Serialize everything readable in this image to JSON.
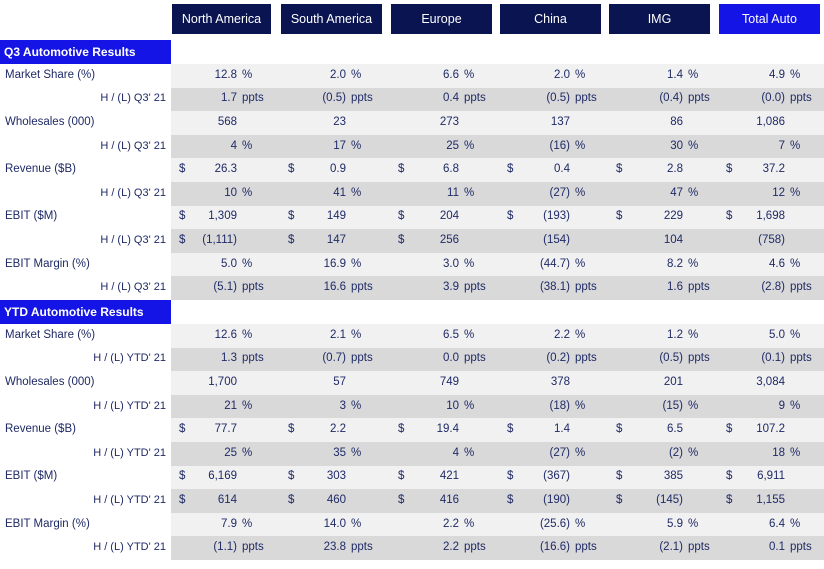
{
  "columns": [
    "North America",
    "South America",
    "Europe",
    "China",
    "IMG",
    "Total Auto"
  ],
  "sections": [
    {
      "title": "Q3 Automotive Results",
      "metrics": [
        {
          "label": "Market Share (%)",
          "sub_label": "H / (L) Q3' 21",
          "main": [
            {
              "cur": "",
              "val": "12.8",
              "unit": "%"
            },
            {
              "cur": "",
              "val": "2.0",
              "unit": "%"
            },
            {
              "cur": "",
              "val": "6.6",
              "unit": "%"
            },
            {
              "cur": "",
              "val": "2.0",
              "unit": "%"
            },
            {
              "cur": "",
              "val": "1.4",
              "unit": "%"
            },
            {
              "cur": "",
              "val": "4.9",
              "unit": "%"
            }
          ],
          "sub": [
            {
              "cur": "",
              "val": "1.7",
              "unit": "ppts"
            },
            {
              "cur": "",
              "val": "(0.5)",
              "unit": "ppts"
            },
            {
              "cur": "",
              "val": "0.4",
              "unit": "ppts"
            },
            {
              "cur": "",
              "val": "(0.5)",
              "unit": "ppts"
            },
            {
              "cur": "",
              "val": "(0.4)",
              "unit": "ppts"
            },
            {
              "cur": "",
              "val": "(0.0)",
              "unit": "ppts"
            }
          ]
        },
        {
          "label": "Wholesales (000)",
          "sub_label": "H / (L) Q3' 21",
          "main": [
            {
              "cur": "",
              "val": "568",
              "unit": ""
            },
            {
              "cur": "",
              "val": "23",
              "unit": ""
            },
            {
              "cur": "",
              "val": "273",
              "unit": ""
            },
            {
              "cur": "",
              "val": "137",
              "unit": ""
            },
            {
              "cur": "",
              "val": "86",
              "unit": ""
            },
            {
              "cur": "",
              "val": "1,086",
              "unit": ""
            }
          ],
          "sub": [
            {
              "cur": "",
              "val": "4",
              "unit": "%"
            },
            {
              "cur": "",
              "val": "17",
              "unit": "%"
            },
            {
              "cur": "",
              "val": "25",
              "unit": "%"
            },
            {
              "cur": "",
              "val": "(16)",
              "unit": "%"
            },
            {
              "cur": "",
              "val": "30",
              "unit": "%"
            },
            {
              "cur": "",
              "val": "7",
              "unit": "%"
            }
          ]
        },
        {
          "label": "Revenue ($B)",
          "sub_label": "H / (L) Q3' 21",
          "main": [
            {
              "cur": "$",
              "val": "26.3",
              "unit": ""
            },
            {
              "cur": "$",
              "val": "0.9",
              "unit": ""
            },
            {
              "cur": "$",
              "val": "6.8",
              "unit": ""
            },
            {
              "cur": "$",
              "val": "0.4",
              "unit": ""
            },
            {
              "cur": "$",
              "val": "2.8",
              "unit": ""
            },
            {
              "cur": "$",
              "val": "37.2",
              "unit": ""
            }
          ],
          "sub": [
            {
              "cur": "",
              "val": "10",
              "unit": "%"
            },
            {
              "cur": "",
              "val": "41",
              "unit": "%"
            },
            {
              "cur": "",
              "val": "11",
              "unit": "%"
            },
            {
              "cur": "",
              "val": "(27)",
              "unit": "%"
            },
            {
              "cur": "",
              "val": "47",
              "unit": "%"
            },
            {
              "cur": "",
              "val": "12",
              "unit": "%"
            }
          ]
        },
        {
          "label": "EBIT ($M)",
          "sub_label": "H / (L) Q3' 21",
          "main": [
            {
              "cur": "$",
              "val": "1,309",
              "unit": ""
            },
            {
              "cur": "$",
              "val": "149",
              "unit": ""
            },
            {
              "cur": "$",
              "val": "204",
              "unit": ""
            },
            {
              "cur": "$",
              "val": "(193)",
              "unit": ""
            },
            {
              "cur": "$",
              "val": "229",
              "unit": ""
            },
            {
              "cur": "$",
              "val": "1,698",
              "unit": ""
            }
          ],
          "sub": [
            {
              "cur": "$",
              "val": "(1,111)",
              "unit": ""
            },
            {
              "cur": "$",
              "val": "147",
              "unit": ""
            },
            {
              "cur": "$",
              "val": "256",
              "unit": ""
            },
            {
              "cur": "",
              "val": "(154)",
              "unit": ""
            },
            {
              "cur": "",
              "val": "104",
              "unit": ""
            },
            {
              "cur": "",
              "val": "(758)",
              "unit": ""
            }
          ]
        },
        {
          "label": "EBIT Margin (%)",
          "sub_label": "H / (L) Q3' 21",
          "main": [
            {
              "cur": "",
              "val": "5.0",
              "unit": "%"
            },
            {
              "cur": "",
              "val": "16.9",
              "unit": "%"
            },
            {
              "cur": "",
              "val": "3.0",
              "unit": "%"
            },
            {
              "cur": "",
              "val": "(44.7)",
              "unit": "%"
            },
            {
              "cur": "",
              "val": "8.2",
              "unit": "%"
            },
            {
              "cur": "",
              "val": "4.6",
              "unit": "%"
            }
          ],
          "sub": [
            {
              "cur": "",
              "val": "(5.1)",
              "unit": "ppts"
            },
            {
              "cur": "",
              "val": "16.6",
              "unit": "ppts"
            },
            {
              "cur": "",
              "val": "3.9",
              "unit": "ppts"
            },
            {
              "cur": "",
              "val": "(38.1)",
              "unit": "ppts"
            },
            {
              "cur": "",
              "val": "1.6",
              "unit": "ppts"
            },
            {
              "cur": "",
              "val": "(2.8)",
              "unit": "ppts"
            }
          ]
        }
      ]
    },
    {
      "title": "YTD Automotive Results",
      "metrics": [
        {
          "label": "Market Share (%)",
          "sub_label": "H / (L) YTD' 21",
          "main": [
            {
              "cur": "",
              "val": "12.6",
              "unit": "%"
            },
            {
              "cur": "",
              "val": "2.1",
              "unit": "%"
            },
            {
              "cur": "",
              "val": "6.5",
              "unit": "%"
            },
            {
              "cur": "",
              "val": "2.2",
              "unit": "%"
            },
            {
              "cur": "",
              "val": "1.2",
              "unit": "%"
            },
            {
              "cur": "",
              "val": "5.0",
              "unit": "%"
            }
          ],
          "sub": [
            {
              "cur": "",
              "val": "1.3",
              "unit": "ppts"
            },
            {
              "cur": "",
              "val": "(0.7)",
              "unit": "ppts"
            },
            {
              "cur": "",
              "val": "0.0",
              "unit": "ppts"
            },
            {
              "cur": "",
              "val": "(0.2)",
              "unit": "ppts"
            },
            {
              "cur": "",
              "val": "(0.5)",
              "unit": "ppts"
            },
            {
              "cur": "",
              "val": "(0.1)",
              "unit": "ppts"
            }
          ]
        },
        {
          "label": "Wholesales (000)",
          "sub_label": "H / (L) YTD' 21",
          "main": [
            {
              "cur": "",
              "val": "1,700",
              "unit": ""
            },
            {
              "cur": "",
              "val": "57",
              "unit": ""
            },
            {
              "cur": "",
              "val": "749",
              "unit": ""
            },
            {
              "cur": "",
              "val": "378",
              "unit": ""
            },
            {
              "cur": "",
              "val": "201",
              "unit": ""
            },
            {
              "cur": "",
              "val": "3,084",
              "unit": ""
            }
          ],
          "sub": [
            {
              "cur": "",
              "val": "21",
              "unit": "%"
            },
            {
              "cur": "",
              "val": "3",
              "unit": "%"
            },
            {
              "cur": "",
              "val": "10",
              "unit": "%"
            },
            {
              "cur": "",
              "val": "(18)",
              "unit": "%"
            },
            {
              "cur": "",
              "val": "(15)",
              "unit": "%"
            },
            {
              "cur": "",
              "val": "9",
              "unit": "%"
            }
          ]
        },
        {
          "label": "Revenue ($B)",
          "sub_label": "H / (L) YTD' 21",
          "main": [
            {
              "cur": "$",
              "val": "77.7",
              "unit": ""
            },
            {
              "cur": "$",
              "val": "2.2",
              "unit": ""
            },
            {
              "cur": "$",
              "val": "19.4",
              "unit": ""
            },
            {
              "cur": "$",
              "val": "1.4",
              "unit": ""
            },
            {
              "cur": "$",
              "val": "6.5",
              "unit": ""
            },
            {
              "cur": "$",
              "val": "107.2",
              "unit": ""
            }
          ],
          "sub": [
            {
              "cur": "",
              "val": "25",
              "unit": "%"
            },
            {
              "cur": "",
              "val": "35",
              "unit": "%"
            },
            {
              "cur": "",
              "val": "4",
              "unit": "%"
            },
            {
              "cur": "",
              "val": "(27)",
              "unit": "%"
            },
            {
              "cur": "",
              "val": "(2)",
              "unit": "%"
            },
            {
              "cur": "",
              "val": "18",
              "unit": "%"
            }
          ]
        },
        {
          "label": "EBIT ($M)",
          "sub_label": "H / (L) YTD' 21",
          "main": [
            {
              "cur": "$",
              "val": "6,169",
              "unit": ""
            },
            {
              "cur": "$",
              "val": "303",
              "unit": ""
            },
            {
              "cur": "$",
              "val": "421",
              "unit": ""
            },
            {
              "cur": "$",
              "val": "(367)",
              "unit": ""
            },
            {
              "cur": "$",
              "val": "385",
              "unit": ""
            },
            {
              "cur": "$",
              "val": "6,911",
              "unit": ""
            }
          ],
          "sub": [
            {
              "cur": "$",
              "val": "614",
              "unit": ""
            },
            {
              "cur": "$",
              "val": "460",
              "unit": ""
            },
            {
              "cur": "$",
              "val": "416",
              "unit": ""
            },
            {
              "cur": "$",
              "val": "(190)",
              "unit": ""
            },
            {
              "cur": "$",
              "val": "(145)",
              "unit": ""
            },
            {
              "cur": "$",
              "val": "1,155",
              "unit": ""
            }
          ]
        },
        {
          "label": "EBIT Margin (%)",
          "sub_label": "H / (L) YTD' 21",
          "main": [
            {
              "cur": "",
              "val": "7.9",
              "unit": "%"
            },
            {
              "cur": "",
              "val": "14.0",
              "unit": "%"
            },
            {
              "cur": "",
              "val": "2.2",
              "unit": "%"
            },
            {
              "cur": "",
              "val": "(25.6)",
              "unit": "%"
            },
            {
              "cur": "",
              "val": "5.9",
              "unit": "%"
            },
            {
              "cur": "",
              "val": "6.4",
              "unit": "%"
            }
          ],
          "sub": [
            {
              "cur": "",
              "val": "(1.1)",
              "unit": "ppts"
            },
            {
              "cur": "",
              "val": "23.8",
              "unit": "ppts"
            },
            {
              "cur": "",
              "val": "2.2",
              "unit": "ppts"
            },
            {
              "cur": "",
              "val": "(16.6)",
              "unit": "ppts"
            },
            {
              "cur": "",
              "val": "(2.1)",
              "unit": "ppts"
            },
            {
              "cur": "",
              "val": "0.1",
              "unit": "ppts"
            }
          ]
        }
      ]
    }
  ]
}
